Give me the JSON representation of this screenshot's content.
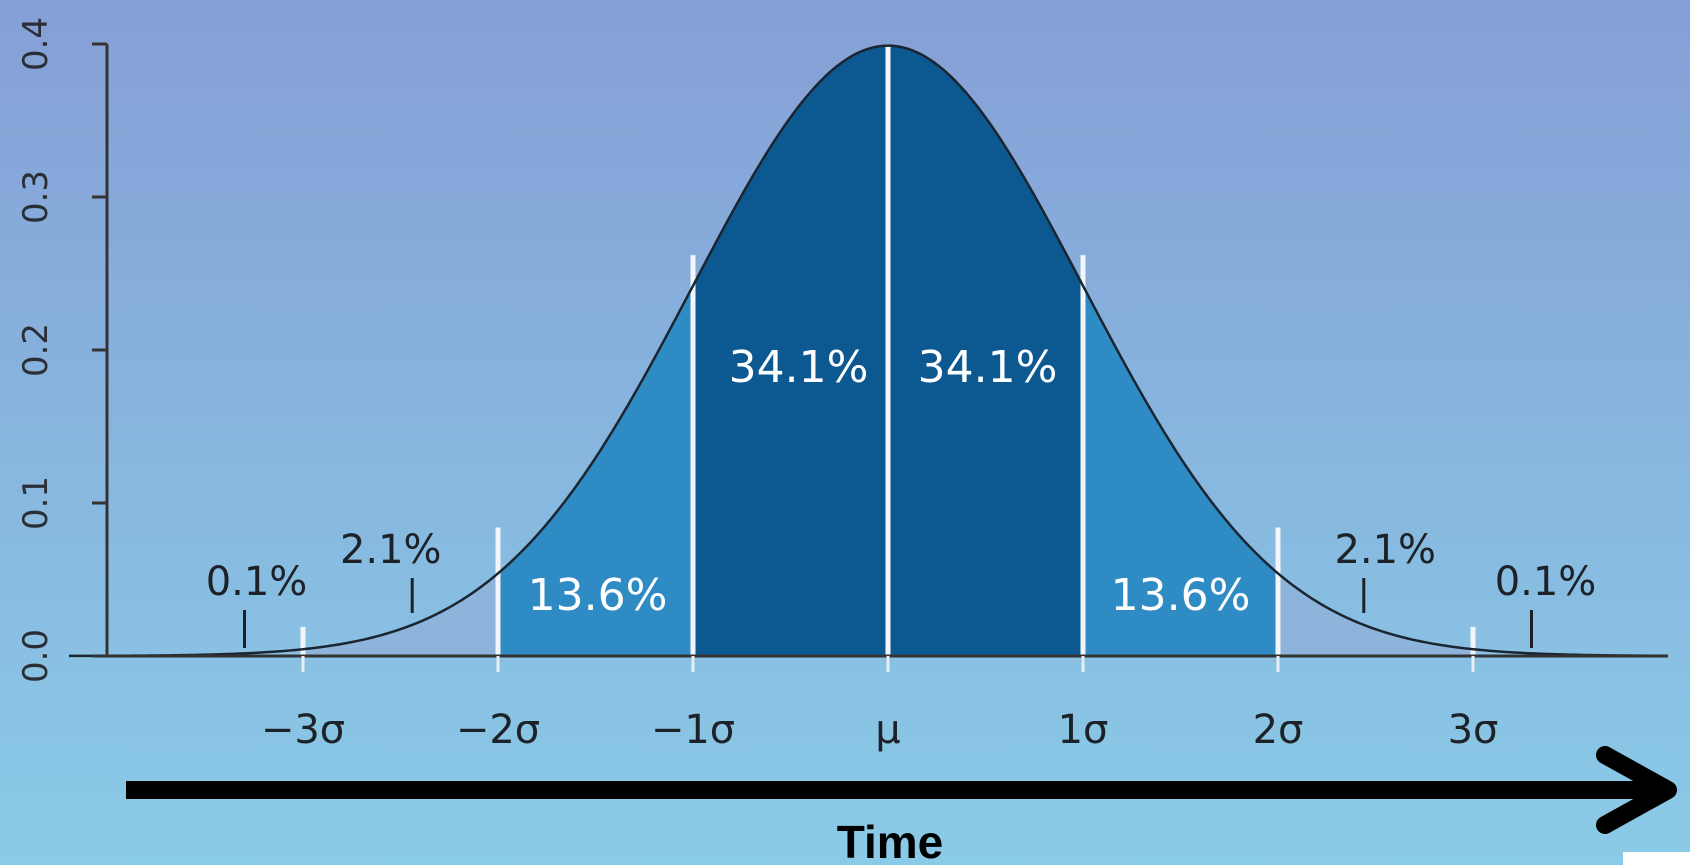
{
  "chart_data": {
    "type": "area",
    "distribution": "normal",
    "mean": 0,
    "sd": 1,
    "x_range": [
      -4.2,
      4.0
    ],
    "ylim": [
      0,
      0.4
    ],
    "yticks": [
      {
        "value": 0.0,
        "label": "0.0"
      },
      {
        "value": 0.1,
        "label": "0.1"
      },
      {
        "value": 0.2,
        "label": "0.2"
      },
      {
        "value": 0.3,
        "label": "0.3"
      },
      {
        "value": 0.4,
        "label": "0.4"
      }
    ],
    "xticks": [
      {
        "value": -3,
        "label": "−3σ"
      },
      {
        "value": -2,
        "label": "−2σ"
      },
      {
        "value": -1,
        "label": "−1σ"
      },
      {
        "value": 0,
        "label": "μ"
      },
      {
        "value": 1,
        "label": "1σ"
      },
      {
        "value": 2,
        "label": "2σ"
      },
      {
        "value": 3,
        "label": "3σ"
      }
    ],
    "regions": [
      {
        "from": -3,
        "to": -2,
        "value": "2.1%",
        "shade": "light"
      },
      {
        "from": -2,
        "to": -1,
        "value": "13.6%",
        "shade": "medium"
      },
      {
        "from": -1,
        "to": 0,
        "value": "34.1%",
        "shade": "dark"
      },
      {
        "from": 0,
        "to": 1,
        "value": "34.1%",
        "shade": "dark"
      },
      {
        "from": 1,
        "to": 2,
        "value": "13.6%",
        "shade": "medium"
      },
      {
        "from": 2,
        "to": 3,
        "value": "2.1%",
        "shade": "light"
      }
    ],
    "tail_labels": [
      {
        "x": -3.3,
        "value": "0.1%"
      },
      {
        "x": 3.3,
        "value": "0.1%"
      }
    ],
    "xlabel": "Time",
    "ylabel": "",
    "grid": false,
    "colors": {
      "dark": "#0c5891",
      "medium": "#2f8bc3",
      "light": "#8fb4dc",
      "curve": "#1b2530",
      "background_top": "#859fd6",
      "background_bottom": "#8acbe7",
      "divider": "#f2f6fa",
      "arrow": "#000000"
    }
  }
}
